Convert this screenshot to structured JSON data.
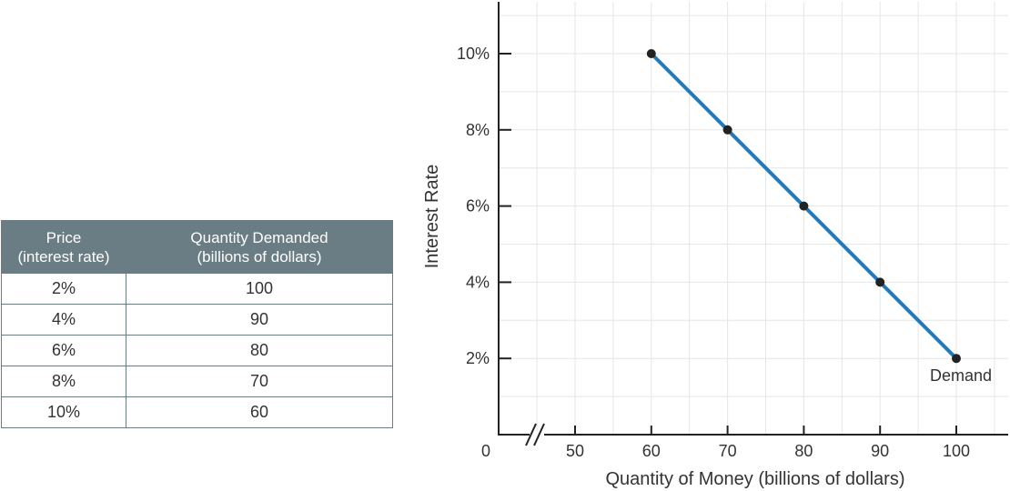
{
  "table": {
    "headers": [
      [
        "Price",
        "(interest rate)"
      ],
      [
        "Quantity Demanded",
        "(billions of dollars)"
      ]
    ],
    "rows": [
      [
        "2%",
        "100"
      ],
      [
        "4%",
        "90"
      ],
      [
        "6%",
        "80"
      ],
      [
        "8%",
        "70"
      ],
      [
        "10%",
        "60"
      ]
    ]
  },
  "colors": {
    "header_bg": "#6b7d84",
    "line": "#1f7bc1",
    "point": "#222222",
    "grid": "#e6e6e6"
  },
  "chart_data": {
    "type": "line",
    "xlabel": "Quantity of Money (billions of dollars)",
    "ylabel": "Interest Rate",
    "xlim": [
      40,
      105
    ],
    "ylim": [
      0,
      11
    ],
    "axis_break": true,
    "x_origin_label": "0",
    "x_ticks": [
      50,
      60,
      70,
      80,
      90,
      100
    ],
    "y_ticks": [
      2,
      4,
      6,
      8,
      10
    ],
    "y_tick_labels": [
      "2%",
      "4%",
      "6%",
      "8%",
      "10%"
    ],
    "grid": true,
    "series": [
      {
        "name": "Demand",
        "x": [
          60,
          70,
          80,
          90,
          100
        ],
        "y": [
          10,
          8,
          6,
          4,
          2
        ]
      }
    ]
  }
}
